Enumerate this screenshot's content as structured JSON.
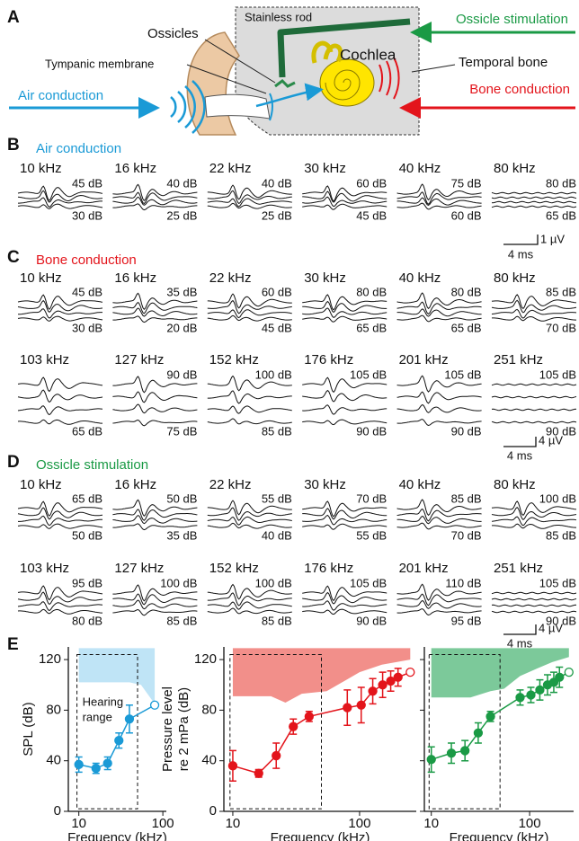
{
  "panel_a": {
    "label": "A",
    "stainless_rod": "Stainless rod",
    "ossicle_stimulation": "Ossicle stimulation",
    "ossicles": "Ossicles",
    "cochlea": "Cochlea",
    "tympanic_membrane": "Tympanic membrane",
    "temporal_bone": "Temporal bone",
    "air_conduction": "Air conduction",
    "bone_conduction": "Bone conduction"
  },
  "panel_b": {
    "label": "B",
    "title": "Air conduction",
    "rows": [
      [
        {
          "frequency": "10 kHz",
          "top": "45 dB",
          "bottom": "30 dB"
        },
        {
          "frequency": "16 kHz",
          "top": "40 dB",
          "bottom": "25 dB"
        },
        {
          "frequency": "22 kHz",
          "top": "40 dB",
          "bottom": "25 dB"
        },
        {
          "frequency": "30 kHz",
          "top": "60 dB",
          "bottom": "45 dB"
        },
        {
          "frequency": "40 kHz",
          "top": "75 dB",
          "bottom": "60 dB"
        },
        {
          "frequency": "80 kHz",
          "top": "80 dB",
          "bottom": "65 dB"
        }
      ]
    ],
    "scale": {
      "voltage": "1 µV",
      "time": "4 ms"
    }
  },
  "panel_c": {
    "label": "C",
    "title": "Bone conduction",
    "rows": [
      [
        {
          "frequency": "10 kHz",
          "top": "45 dB",
          "bottom": "30 dB"
        },
        {
          "frequency": "16 kHz",
          "top": "35 dB",
          "bottom": "20 dB"
        },
        {
          "frequency": "22 kHz",
          "top": "60 dB",
          "bottom": "45 dB"
        },
        {
          "frequency": "30 kHz",
          "top": "80 dB",
          "bottom": "65 dB"
        },
        {
          "frequency": "40 kHz",
          "top": "80 dB",
          "bottom": "65 dB"
        },
        {
          "frequency": "80 kHz",
          "top": "85 dB",
          "bottom": "70 dB"
        }
      ],
      [
        {
          "frequency": "103 kHz",
          "bottom": "65 dB"
        },
        {
          "frequency": "127 kHz",
          "top": "90 dB",
          "bottom": "75 dB"
        },
        {
          "frequency": "152 kHz",
          "top": "100 dB",
          "bottom": "85 dB"
        },
        {
          "frequency": "176 kHz",
          "top": "105 dB",
          "bottom": "90 dB"
        },
        {
          "frequency": "201 kHz",
          "top": "105 dB",
          "bottom": "90 dB"
        },
        {
          "frequency": "251 kHz",
          "top": "105 dB",
          "bottom": "90 dB"
        }
      ]
    ],
    "scale": {
      "voltage": "4 µV",
      "time": "4 ms"
    }
  },
  "panel_d": {
    "label": "D",
    "title": "Ossicle stimulation",
    "rows": [
      [
        {
          "frequency": "10 kHz",
          "top": "65 dB",
          "bottom": "50 dB"
        },
        {
          "frequency": "16 kHz",
          "top": "50 dB",
          "bottom": "35 dB"
        },
        {
          "frequency": "22 kHz",
          "top": "55 dB",
          "bottom": "40 dB"
        },
        {
          "frequency": "30 kHz",
          "top": "70 dB",
          "bottom": "55 dB"
        },
        {
          "frequency": "40 kHz",
          "top": "85 dB",
          "bottom": "70 dB"
        },
        {
          "frequency": "80 kHz",
          "top": "100 dB",
          "bottom": "85 dB"
        }
      ],
      [
        {
          "frequency": "103 kHz",
          "top": "95 dB",
          "bottom": "80 dB"
        },
        {
          "frequency": "127 kHz",
          "top": "100 dB",
          "bottom": "85 dB"
        },
        {
          "frequency": "152 kHz",
          "top": "100 dB",
          "bottom": "85 dB"
        },
        {
          "frequency": "176 kHz",
          "top": "105 dB",
          "bottom": "90 dB"
        },
        {
          "frequency": "201 kHz",
          "top": "110 dB",
          "bottom": "95 dB"
        },
        {
          "frequency": "251 kHz",
          "top": "105 dB",
          "bottom": "90 dB"
        }
      ]
    ],
    "scale": {
      "voltage": "4 µV",
      "time": "4 ms"
    }
  },
  "panel_e": {
    "label": "E"
  },
  "chart_data": [
    {
      "type": "line",
      "log_x": true,
      "color": "#1a9ad6",
      "x": [
        10,
        16,
        22,
        30,
        40,
        80
      ],
      "values": [
        37,
        34,
        38,
        56,
        73,
        84
      ],
      "errors": [
        6,
        4,
        5,
        6,
        11,
        null
      ],
      "open_markers": [
        5
      ],
      "shaded_region": {
        "x": [
          10,
          40,
          55,
          80
        ],
        "lower": [
          102,
          102,
          100,
          85
        ],
        "upper": [
          129,
          129,
          129,
          129
        ],
        "color": "#bfe4f6"
      },
      "hearing_range": {
        "label": [
          "Hearing",
          "range"
        ],
        "xlim": [
          9.5,
          50
        ],
        "ylim": [
          2,
          124
        ]
      },
      "x_label": "Frequency (kHz)",
      "y_label": [
        "SPL (dB)"
      ],
      "xlim": [
        7.5,
        110
      ],
      "ylim": [
        0,
        130
      ],
      "xticks": [
        10,
        100
      ],
      "yticks": [
        0,
        40,
        80,
        120
      ],
      "ytick_labels": true
    },
    {
      "type": "line",
      "log_x": true,
      "color": "#e3141b",
      "x": [
        10,
        16,
        22,
        30,
        40,
        80,
        103,
        127,
        152,
        176,
        201,
        251
      ],
      "values": [
        36,
        30,
        44,
        67,
        75,
        82,
        84,
        95,
        100,
        103,
        106,
        110
      ],
      "errors": [
        12,
        3,
        10,
        6,
        4,
        14,
        14,
        10,
        10,
        8,
        7,
        null
      ],
      "open_markers": [
        11
      ],
      "shaded_region": {
        "x": [
          10,
          20,
          26,
          35,
          55,
          100,
          150,
          251
        ],
        "lower": [
          91,
          91,
          86,
          93,
          95,
          110,
          116,
          120
        ],
        "upper": [
          129,
          129,
          129,
          129,
          129,
          129,
          129,
          129
        ],
        "color": "#f28f8a"
      },
      "hearing_range": {
        "xlim": [
          9.5,
          50
        ],
        "ylim": [
          2,
          124
        ]
      },
      "x_label": "Frequency (kHz)",
      "y_label": [
        "Pressure level",
        "re 2 mPa (dB)"
      ],
      "xlim": [
        8.5,
        280
      ],
      "ylim": [
        0,
        130
      ],
      "xticks": [
        10,
        100
      ],
      "yticks": [
        0,
        40,
        80,
        120
      ],
      "ytick_labels": true
    },
    {
      "type": "line",
      "log_x": true,
      "color": "#1a9a45",
      "x": [
        10,
        16,
        22,
        30,
        40,
        80,
        103,
        127,
        152,
        176,
        201,
        251
      ],
      "values": [
        41,
        46,
        48,
        62,
        75,
        90,
        92,
        96,
        100,
        102,
        106,
        110
      ],
      "errors": [
        10,
        8,
        8,
        8,
        4,
        6,
        6,
        8,
        8,
        8,
        8,
        null
      ],
      "open_markers": [
        11
      ],
      "shaded_region": {
        "x": [
          10,
          25,
          40,
          55,
          80,
          120,
          170,
          251
        ],
        "lower": [
          90,
          90,
          95,
          97,
          107,
          113,
          118,
          122
        ],
        "upper": [
          129,
          129,
          129,
          129,
          129,
          129,
          129,
          129
        ],
        "color": "#7cc99a"
      },
      "hearing_range": {
        "xlim": [
          9.5,
          50
        ],
        "ylim": [
          2,
          124
        ]
      },
      "x_label": "Frequency (kHz)",
      "xlim": [
        8.5,
        280
      ],
      "ylim": [
        0,
        130
      ],
      "xticks": [
        10,
        100
      ],
      "yticks": [
        0,
        40,
        80,
        120
      ],
      "ytick_labels": false
    }
  ]
}
